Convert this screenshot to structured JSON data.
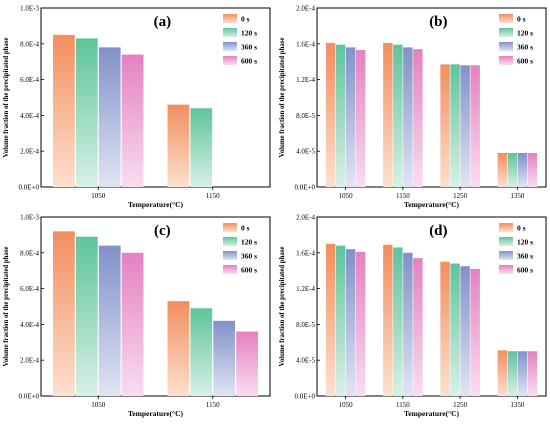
{
  "legend": [
    "0 s",
    "120 s",
    "360 s",
    "600 s"
  ],
  "colors": {
    "0 s": [
      "#f28e5e",
      "#fde0cf"
    ],
    "120 s": [
      "#5ec49c",
      "#d8f0e6"
    ],
    "360 s": [
      "#8191c9",
      "#e0e4f3"
    ],
    "600 s": [
      "#e481c0",
      "#f9ddf0"
    ]
  },
  "chart_data": [
    {
      "type": "bar",
      "panel_label": "(a)",
      "xlabel": "Temperature(°C)",
      "ylabel": "Volume fraction of the precipitated phase",
      "categories": [
        "1050",
        "1150"
      ],
      "ylim": [
        0,
        0.001
      ],
      "yticks": [
        0,
        0.0002,
        0.0004,
        0.0006,
        0.0008,
        0.001
      ],
      "ytick_labels": [
        "0.0E+0",
        "2.0E-4",
        "4.0E-4",
        "6.0E-4",
        "8.0E-4",
        "1.0E-3"
      ],
      "series": [
        {
          "name": "0 s",
          "values": [
            0.00085,
            0.00046
          ]
        },
        {
          "name": "120 s",
          "values": [
            0.00083,
            0.00044
          ]
        },
        {
          "name": "360 s",
          "values": [
            0.00078,
            null
          ]
        },
        {
          "name": "600 s",
          "values": [
            0.00074,
            null
          ]
        }
      ]
    },
    {
      "type": "bar",
      "panel_label": "(b)",
      "xlabel": "Temperature(°C)",
      "ylabel": "Volume fraction of the precipitated phase",
      "categories": [
        "1050",
        "1150",
        "1250",
        "1350"
      ],
      "ylim": [
        0,
        0.0002
      ],
      "yticks": [
        0,
        4e-05,
        8e-05,
        0.00012,
        0.00016,
        0.0002
      ],
      "ytick_labels": [
        "0.0E+0",
        "4.0E-5",
        "8.0E-5",
        "1.2E-4",
        "1.6E-4",
        "2.0E-4"
      ],
      "series": [
        {
          "name": "0 s",
          "values": [
            0.000161,
            0.000161,
            0.000137,
            3.8e-05
          ]
        },
        {
          "name": "120 s",
          "values": [
            0.000159,
            0.000159,
            0.000137,
            3.8e-05
          ]
        },
        {
          "name": "360 s",
          "values": [
            0.000156,
            0.000156,
            0.000136,
            3.8e-05
          ]
        },
        {
          "name": "600 s",
          "values": [
            0.000153,
            0.000154,
            0.000136,
            3.8e-05
          ]
        }
      ]
    },
    {
      "type": "bar",
      "panel_label": "(c)",
      "xlabel": "Temperature(°C)",
      "ylabel": "Volume fraction of the precipitated phase",
      "categories": [
        "1050",
        "1150"
      ],
      "ylim": [
        0,
        0.001
      ],
      "yticks": [
        0,
        0.0002,
        0.0004,
        0.0006,
        0.0008,
        0.001
      ],
      "ytick_labels": [
        "0.0E+0",
        "2.0E-4",
        "4.0E-4",
        "6.0E-4",
        "8.0E-4",
        "1.0E-3"
      ],
      "series": [
        {
          "name": "0 s",
          "values": [
            0.00092,
            0.00053
          ]
        },
        {
          "name": "120 s",
          "values": [
            0.00089,
            0.00049
          ]
        },
        {
          "name": "360 s",
          "values": [
            0.00084,
            0.00042
          ]
        },
        {
          "name": "600 s",
          "values": [
            0.0008,
            0.00036
          ]
        }
      ]
    },
    {
      "type": "bar",
      "panel_label": "(d)",
      "xlabel": "Temperature(°C)",
      "ylabel": "Volume fraction of the precipitated phase",
      "categories": [
        "1050",
        "1150",
        "1250",
        "1350"
      ],
      "ylim": [
        0,
        0.0002
      ],
      "yticks": [
        0,
        4e-05,
        8e-05,
        0.00012,
        0.00016,
        0.0002
      ],
      "ytick_labels": [
        "0.0E+0",
        "4.0E-5",
        "8.0E-5",
        "1.2E-4",
        "1.6E-4",
        "2.0E-4"
      ],
      "series": [
        {
          "name": "0 s",
          "values": [
            0.00017,
            0.000169,
            0.00015,
            5.1e-05
          ]
        },
        {
          "name": "120 s",
          "values": [
            0.000168,
            0.000166,
            0.000148,
            5e-05
          ]
        },
        {
          "name": "360 s",
          "values": [
            0.000164,
            0.00016,
            0.000145,
            5e-05
          ]
        },
        {
          "name": "600 s",
          "values": [
            0.000161,
            0.000154,
            0.000142,
            5e-05
          ]
        }
      ]
    }
  ]
}
